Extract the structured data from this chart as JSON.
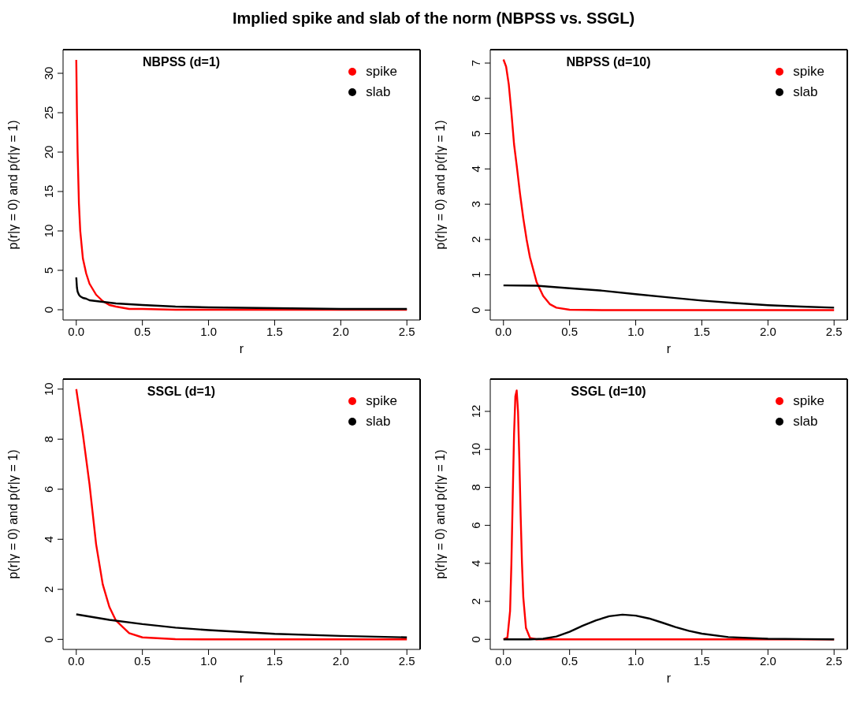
{
  "chart_data": [
    {
      "type": "line",
      "title": "NBPSS (d=1)",
      "xlabel": "r",
      "ylabel": "p(r|γ = 0) and p(r|γ = 1)",
      "annotations": [
        "Implied spike and slab of the norm (NBPSS vs. SSGL)"
      ],
      "legend": "top right",
      "grid": false,
      "marker": "none",
      "line_style": "solid",
      "xlim": [
        -0.1,
        2.6
      ],
      "xticks": [
        {
          "value": 0,
          "label": "0.0"
        },
        {
          "value": 0.5,
          "label": "0.5"
        },
        {
          "value": 1,
          "label": "1.0"
        },
        {
          "value": 1.5,
          "label": "1.5"
        },
        {
          "value": 2,
          "label": "2.0"
        },
        {
          "value": 2.5,
          "label": "2.5"
        }
      ],
      "ylim": [
        -1.3,
        33
      ],
      "yticks": [
        0,
        5,
        10,
        15,
        20,
        25,
        30
      ],
      "series": [
        {
          "name": "spike",
          "color": "#ff0000",
          "x": [
            0,
            0.005,
            0.01,
            0.02,
            0.03,
            0.05,
            0.075,
            0.1,
            0.15,
            0.2,
            0.25,
            0.3,
            0.4,
            0.5,
            0.75,
            1,
            1.5,
            2,
            2.5
          ],
          "values": [
            31.7,
            25,
            20,
            13.5,
            10,
            6.5,
            4.6,
            3.3,
            1.9,
            1.1,
            0.6,
            0.4,
            0.1,
            0.1,
            0,
            0,
            0,
            0,
            0
          ]
        },
        {
          "name": "slab",
          "color": "#000000",
          "x": [
            0,
            0.005,
            0.01,
            0.02,
            0.03,
            0.05,
            0.075,
            0.1,
            0.15,
            0.2,
            0.25,
            0.3,
            0.4,
            0.5,
            0.75,
            1,
            1.5,
            2,
            2.5
          ],
          "values": [
            4.1,
            2.8,
            2.3,
            1.9,
            1.7,
            1.5,
            1.4,
            1.2,
            1.1,
            1.0,
            0.9,
            0.8,
            0.7,
            0.6,
            0.4,
            0.3,
            0.2,
            0.1,
            0.1
          ]
        }
      ]
    },
    {
      "type": "line",
      "title": "NBPSS (d=10)",
      "xlabel": "r",
      "ylabel": "p(r|γ = 0) and p(r|γ = 1)",
      "legend": "top right",
      "grid": false,
      "marker": "none",
      "line_style": "solid",
      "xlim": [
        -0.1,
        2.6
      ],
      "xticks": [
        {
          "value": 0,
          "label": "0.0"
        },
        {
          "value": 0.5,
          "label": "0.5"
        },
        {
          "value": 1,
          "label": "1.0"
        },
        {
          "value": 1.5,
          "label": "1.5"
        },
        {
          "value": 2,
          "label": "2.0"
        },
        {
          "value": 2.5,
          "label": "2.5"
        }
      ],
      "ylim": [
        -0.28,
        7.38
      ],
      "yticks": [
        0,
        1,
        2,
        3,
        4,
        5,
        6,
        7
      ],
      "series": [
        {
          "name": "spike",
          "color": "#ff0000",
          "x": [
            0,
            0.02,
            0.04,
            0.06,
            0.08,
            0.1,
            0.125,
            0.15,
            0.175,
            0.2,
            0.25,
            0.3,
            0.35,
            0.4,
            0.5,
            0.75,
            1,
            1.5,
            2,
            2.5
          ],
          "values": [
            7.1,
            6.9,
            6.4,
            5.6,
            4.7,
            4.1,
            3.3,
            2.6,
            2.0,
            1.5,
            0.8,
            0.4,
            0.17,
            0.07,
            0.01,
            0,
            0,
            0,
            0,
            0
          ]
        },
        {
          "name": "slab",
          "color": "#000000",
          "x": [
            0,
            0.25,
            0.5,
            0.75,
            1,
            1.25,
            1.5,
            1.75,
            2,
            2.25,
            2.5
          ],
          "values": [
            0.7,
            0.69,
            0.62,
            0.55,
            0.45,
            0.36,
            0.27,
            0.2,
            0.14,
            0.1,
            0.07
          ]
        }
      ]
    },
    {
      "type": "line",
      "title": "SSGL (d=1)",
      "xlabel": "r",
      "ylabel": "p(r|γ = 0) and p(r|γ = 1)",
      "legend": "top right",
      "grid": false,
      "marker": "none",
      "line_style": "solid",
      "xlim": [
        -0.1,
        2.6
      ],
      "xticks": [
        {
          "value": 0,
          "label": "0.0"
        },
        {
          "value": 0.5,
          "label": "0.5"
        },
        {
          "value": 1,
          "label": "1.0"
        },
        {
          "value": 1.5,
          "label": "1.5"
        },
        {
          "value": 2,
          "label": "2.0"
        },
        {
          "value": 2.5,
          "label": "2.5"
        }
      ],
      "ylim": [
        -0.4,
        10.4
      ],
      "yticks": [
        0,
        2,
        4,
        6,
        8,
        10
      ],
      "series": [
        {
          "name": "spike",
          "color": "#ff0000",
          "x": [
            0,
            0.05,
            0.1,
            0.15,
            0.2,
            0.25,
            0.3,
            0.4,
            0.5,
            0.75,
            1,
            1.5,
            2,
            2.5
          ],
          "values": [
            10,
            8.2,
            6.2,
            3.8,
            2.2,
            1.3,
            0.75,
            0.25,
            0.08,
            0.01,
            0,
            0,
            0,
            0
          ]
        },
        {
          "name": "slab",
          "color": "#000000",
          "x": [
            0,
            0.25,
            0.5,
            0.75,
            1,
            1.5,
            2,
            2.5
          ],
          "values": [
            1,
            0.78,
            0.61,
            0.47,
            0.37,
            0.22,
            0.14,
            0.08
          ]
        }
      ]
    },
    {
      "type": "line",
      "title": "SSGL (d=10)",
      "xlabel": "r",
      "ylabel": "p(r|γ = 0) and p(r|γ = 1)",
      "legend": "top right",
      "grid": false,
      "marker": "none",
      "line_style": "solid",
      "xlim": [
        -0.1,
        2.6
      ],
      "xticks": [
        {
          "value": 0,
          "label": "0.0"
        },
        {
          "value": 0.5,
          "label": "0.5"
        },
        {
          "value": 1,
          "label": "1.0"
        },
        {
          "value": 1.5,
          "label": "1.5"
        },
        {
          "value": 2,
          "label": "2.0"
        },
        {
          "value": 2.5,
          "label": "2.5"
        }
      ],
      "ylim": [
        -0.53,
        13.7
      ],
      "yticks": [
        0,
        2,
        4,
        6,
        8,
        10,
        12
      ],
      "series": [
        {
          "name": "spike",
          "color": "#ff0000",
          "x": [
            0,
            0.03,
            0.05,
            0.06,
            0.07,
            0.08,
            0.09,
            0.1,
            0.11,
            0.12,
            0.13,
            0.14,
            0.15,
            0.17,
            0.2,
            0.25,
            0.5,
            1,
            1.5,
            2,
            2.5
          ],
          "values": [
            0,
            0.1,
            1.5,
            4,
            7.5,
            10.8,
            12.8,
            13.1,
            12,
            9.5,
            6.5,
            4,
            2.2,
            0.6,
            0.08,
            0,
            0,
            0,
            0,
            0,
            0
          ]
        },
        {
          "name": "slab",
          "color": "#000000",
          "x": [
            0,
            0.2,
            0.3,
            0.4,
            0.5,
            0.6,
            0.7,
            0.8,
            0.9,
            1.0,
            1.1,
            1.2,
            1.3,
            1.4,
            1.5,
            1.7,
            2,
            2.5
          ],
          "values": [
            0,
            0,
            0.03,
            0.15,
            0.4,
            0.72,
            1.0,
            1.22,
            1.3,
            1.25,
            1.1,
            0.88,
            0.65,
            0.45,
            0.3,
            0.12,
            0.03,
            0
          ]
        }
      ]
    }
  ]
}
